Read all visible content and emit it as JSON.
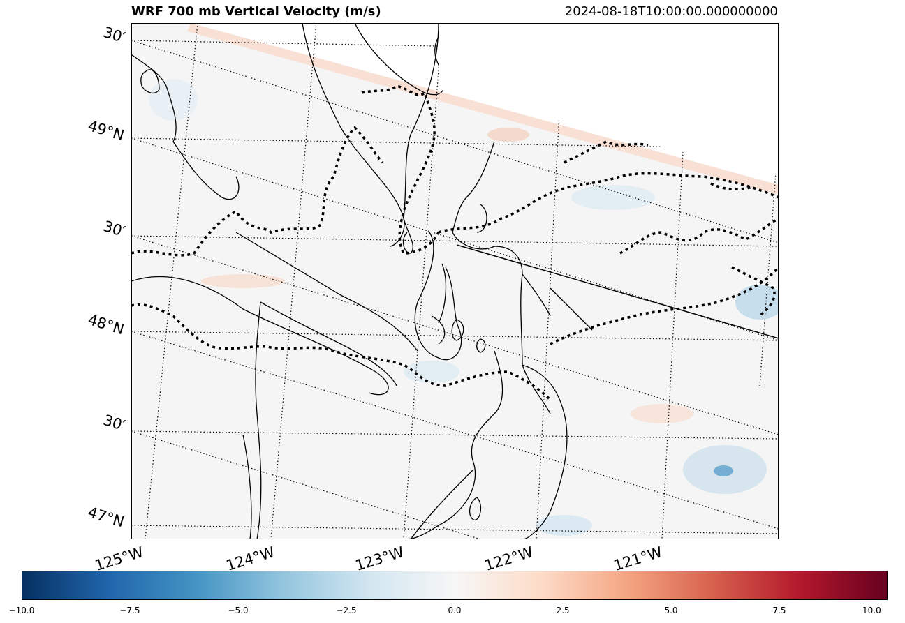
{
  "header": {
    "title": "WRF 700 mb Vertical Velocity (m/s)",
    "timestamp": "2024-08-18T10:00:00.000000000"
  },
  "map": {
    "lat_labels": [
      "30′",
      "49°N",
      "30′",
      "48°N",
      "30′",
      "47°N"
    ],
    "lon_labels": [
      "125°W",
      "124°W",
      "123°W",
      "122°W",
      "121°W"
    ],
    "field_colors": {
      "negative": "#2166ac",
      "zero": "#f7f7f7",
      "positive": "#d6604d"
    }
  },
  "colorbar": {
    "min": -10.0,
    "max": 10.0,
    "tick_labels": [
      "−10.0",
      "−7.5",
      "−5.0",
      "−2.5",
      "0.0",
      "2.5",
      "5.0",
      "7.5",
      "10.0"
    ],
    "colormap": [
      "#053061",
      "#2166ac",
      "#4393c3",
      "#92c5de",
      "#d1e5f0",
      "#f7f7f7",
      "#fddbc7",
      "#f4a582",
      "#d6604d",
      "#b2182b",
      "#67001f"
    ]
  }
}
